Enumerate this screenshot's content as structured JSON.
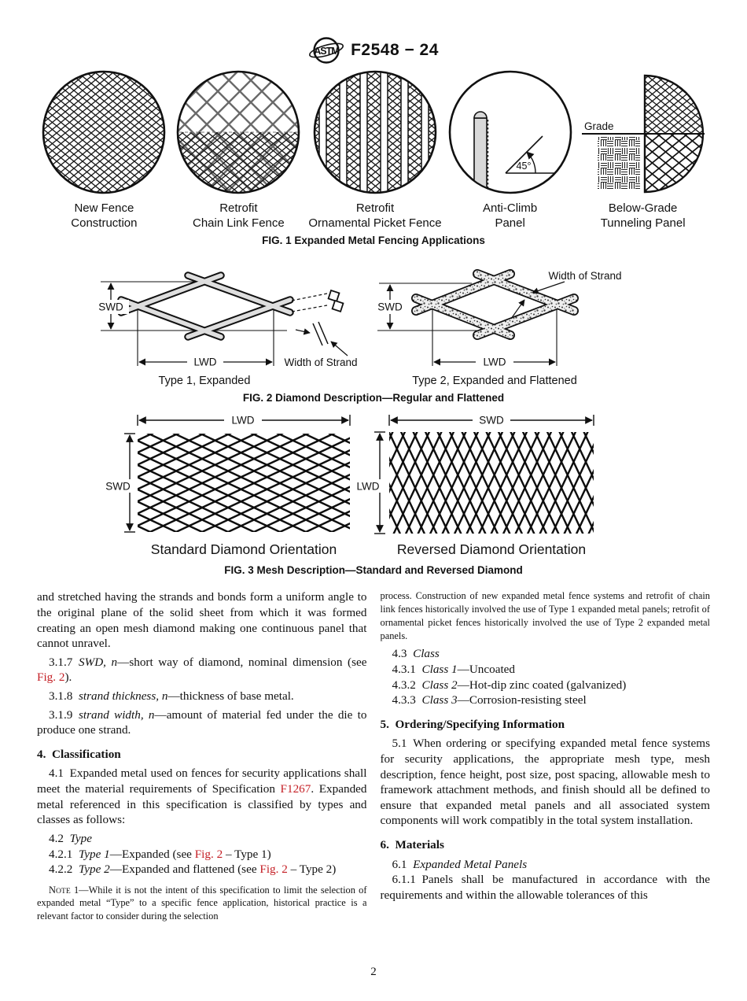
{
  "colors": {
    "link_red": "#c41e24",
    "ink": "#111111"
  },
  "header": {
    "title": "F2548 − 24",
    "logo_text": "ASTM"
  },
  "fig1": {
    "caption": "FIG. 1 Expanded Metal Fencing Applications",
    "items": [
      {
        "line1": "New Fence",
        "line2": "Construction"
      },
      {
        "line1": "Retrofit",
        "line2": "Chain Link Fence"
      },
      {
        "line1": "Retrofit",
        "line2": "Ornamental Picket Fence"
      },
      {
        "line1": "Anti-Climb",
        "line2": "Panel"
      },
      {
        "line1": "Below-Grade",
        "line2": "Tunneling Panel"
      }
    ],
    "angle_label": "45°",
    "grade_label": "Grade"
  },
  "fig2": {
    "caption": "FIG. 2 Diamond Description—Regular and Flattened",
    "swd": "SWD",
    "lwd": "LWD",
    "width_of_strand": "Width of Strand",
    "type1_label": "Type 1, Expanded",
    "type2_label": "Type 2, Expanded and Flattened"
  },
  "fig3": {
    "caption": "FIG. 3 Mesh Description—Standard and Reversed Diamond",
    "swd": "SWD",
    "lwd": "LWD",
    "standard_label": "Standard Diamond Orientation",
    "reversed_label": "Reversed Diamond Orientation"
  },
  "columns": {
    "left": [
      {
        "runs": [
          {
            "t": "and stretched having the strands and bonds form a uniform angle to the original plane of the solid sheet from which it was formed creating an open mesh diamond making one continuous panel that cannot unravel."
          }
        ]
      },
      {
        "runs": [
          {
            "t": "3.1.7 "
          },
          {
            "t": "SWD, n",
            "c": "i"
          },
          {
            "t": "—short way of diamond, nominal dimension (see "
          },
          {
            "t": "Fig. 2",
            "c": "red"
          },
          {
            "t": ")."
          }
        ]
      },
      {
        "runs": [
          {
            "t": "3.1.8 "
          },
          {
            "t": "strand thickness, n",
            "c": "i"
          },
          {
            "t": "—thickness of base metal."
          }
        ]
      },
      {
        "runs": [
          {
            "t": "3.1.9 "
          },
          {
            "t": "strand width, n",
            "c": "i"
          },
          {
            "t": "—amount of material fed under the die to produce one strand."
          }
        ]
      },
      {
        "runs": [
          {
            "t": "4. Classification"
          }
        ]
      },
      {
        "runs": [
          {
            "t": "4.1 Expanded metal used on fences for security applications shall meet the material requirements of Specification "
          },
          {
            "t": "F1267",
            "c": "red"
          },
          {
            "t": ". Expanded metal referenced in this specification is classified by types and classes as follows:"
          }
        ]
      },
      {
        "runs": [
          {
            "t": "4.2 "
          },
          {
            "t": "Type",
            "c": "i"
          }
        ]
      },
      {
        "runs": [
          {
            "t": "4.2.1 "
          },
          {
            "t": "Type 1",
            "c": "i"
          },
          {
            "t": "—Expanded (see "
          },
          {
            "t": "Fig. 2",
            "c": "red"
          },
          {
            "t": " – Type 1)"
          }
        ]
      },
      {
        "runs": [
          {
            "t": "4.2.2 "
          },
          {
            "t": "Type 2",
            "c": "i"
          },
          {
            "t": "—Expanded and flattened (see "
          },
          {
            "t": "Fig. 2",
            "c": "red"
          },
          {
            "t": " – Type 2)"
          }
        ]
      },
      {
        "runs": [
          {
            "t": "N"
          },
          {
            "t": "OTE",
            "c": "sc"
          },
          {
            "t": " 1—While it is not the intent of this specification to limit the selection of expanded metal “Type” to a specific fence application, historical practice is a relevant factor to consider during the selection"
          }
        ]
      }
    ],
    "right": [
      {
        "runs": [
          {
            "t": "process. Construction of new expanded metal fence systems and retrofit of chain link fences historically involved the use of Type 1 expanded metal panels; retrofit of ornamental picket fences historically involved the use of Type 2 expanded metal panels."
          }
        ]
      },
      {
        "runs": [
          {
            "t": "4.3 "
          },
          {
            "t": "Class",
            "c": "i"
          }
        ]
      },
      {
        "runs": [
          {
            "t": "4.3.1 "
          },
          {
            "t": "Class 1",
            "c": "i"
          },
          {
            "t": "—Uncoated"
          }
        ]
      },
      {
        "runs": [
          {
            "t": "4.3.2 "
          },
          {
            "t": "Class 2",
            "c": "i"
          },
          {
            "t": "—Hot-dip zinc coated (galvanized)"
          }
        ]
      },
      {
        "runs": [
          {
            "t": "4.3.3 "
          },
          {
            "t": "Class 3",
            "c": "i"
          },
          {
            "t": "—Corrosion-resisting steel"
          }
        ]
      },
      {
        "runs": [
          {
            "t": "5. Ordering/Specifying Information"
          }
        ]
      },
      {
        "runs": [
          {
            "t": "5.1 When ordering or specifying expanded metal fence systems for security applications, the appropriate mesh type, mesh description, fence height, post size, post spacing, allowable mesh to framework attachment methods, and finish should all be defined to ensure that expanded metal panels and all associated system components will work compatibly in the total system installation."
          }
        ]
      },
      {
        "runs": [
          {
            "t": "6. Materials"
          }
        ]
      },
      {
        "runs": [
          {
            "t": "6.1 "
          },
          {
            "t": "Expanded Metal Panels",
            "c": "i"
          }
        ]
      },
      {
        "runs": [
          {
            "t": "6.1.1 Panels shall be manufactured in accordance with the requirements and within the allowable tolerances of this"
          }
        ]
      }
    ]
  },
  "footer": {
    "page": "2"
  }
}
